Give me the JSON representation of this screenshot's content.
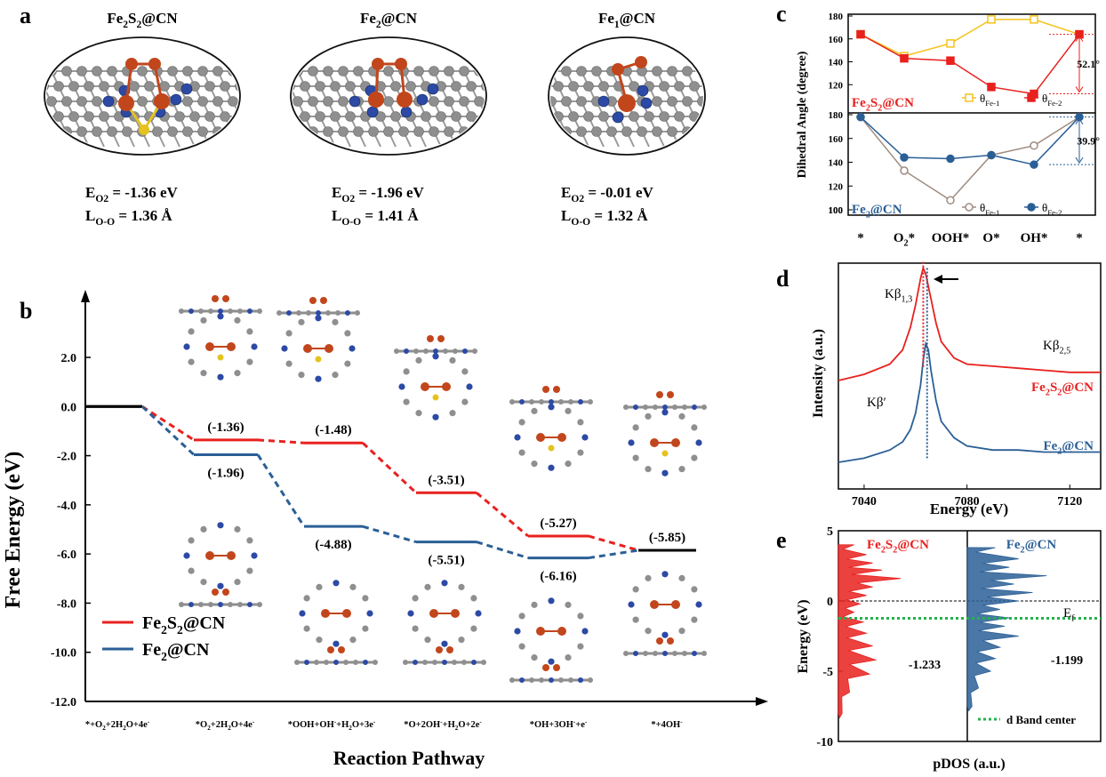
{
  "panels": {
    "a": "a",
    "b": "b",
    "c": "c",
    "d": "d",
    "e": "e"
  },
  "panel_a": {
    "structures": [
      {
        "title": "Fe2S2@CN",
        "e_label": "E",
        "e_sub": "O2",
        "e_value": "= -1.36  eV",
        "l_label": "L",
        "l_sub": "O-O",
        "l_value": "=  1.36 Å"
      },
      {
        "title": "Fe2@CN",
        "e_label": "E",
        "e_sub": "O2",
        "e_value": "= -1.96  eV",
        "l_label": "L",
        "l_sub": "O-O",
        "l_value": "=  1.41 Å"
      },
      {
        "title": "Fe1@CN",
        "e_label": "E",
        "e_sub": "O2",
        "e_value": "= -0.01  eV",
        "l_label": "L",
        "l_sub": "O-O",
        "l_value": "=  1.32 Å"
      }
    ]
  },
  "colors": {
    "red": "#e8211f",
    "blue": "#2a5f96",
    "yellow": "#f5c31c",
    "brown": "#a08c80",
    "green": "#23b24b",
    "fe": "#c2461c",
    "n": "#2c4aa5",
    "c": "#8f8f8f",
    "s": "#e6c21e"
  },
  "chart_data": [
    {
      "panel": "b",
      "type": "line",
      "ylabel": "Free Energy (eV)",
      "xlabel": "Reaction Pathway",
      "ylim": [
        -12.0,
        2.0
      ],
      "yticks": [
        "2.0",
        "0.0",
        "-2.0",
        "-4.0",
        "-6.0",
        "-8.0",
        "-10.0",
        "-12.0"
      ],
      "categories": [
        "*+O2+2H2O+4e-",
        "*O2+2H2O+4e-",
        "*OOH+OH-+H2O+3e-",
        "*O+2OH-+H2O+2e-",
        "*OH+3OH-+e-",
        "*+4OH-"
      ],
      "category_labels": [
        {
          "main": "*+O",
          "sub": "2",
          "rest": "+2H",
          "sub2": "2",
          "rest2": "O+4e",
          "sup": "-"
        },
        {
          "main": "*O",
          "sub": "2",
          "rest": "+2H",
          "sub2": "2",
          "rest2": "O+4e",
          "sup": "-"
        },
        {
          "main": "*OOH+OH",
          "sup1": "-",
          "rest": "+H",
          "sub2": "2",
          "rest2": "O+3e",
          "sup": "-"
        },
        {
          "main": "*O+2OH",
          "sup1": "-",
          "rest": "+H",
          "sub2": "2",
          "rest2": "O+2e",
          "sup": "-"
        },
        {
          "main": "*OH+3OH",
          "sup1": "-",
          "rest": "+e",
          "sup": "-"
        },
        {
          "main": "*+4OH",
          "sup": "-"
        }
      ],
      "series": [
        {
          "name": "Fe2S2@CN",
          "values": [
            0.0,
            -1.36,
            -1.48,
            -3.51,
            -5.27,
            -5.85
          ],
          "labels": [
            "",
            "(-1.36)",
            "(-1.48)",
            "(-3.51)",
            "(-5.27)",
            "(-5.85)"
          ]
        },
        {
          "name": "Fe2@CN",
          "values": [
            0.0,
            -1.96,
            -4.88,
            -5.51,
            -6.16,
            -5.85
          ],
          "labels": [
            "",
            "(-1.96)",
            "(-4.88)",
            "(-5.51)",
            "(-6.16)",
            ""
          ]
        }
      ],
      "legend": [
        {
          "base": "Fe",
          "sub1": "2",
          "mid": "S",
          "sub2": "2",
          "tail": "@CN"
        },
        {
          "base": "Fe",
          "sub1": "2",
          "mid": "",
          "sub2": "",
          "tail": "@CN"
        }
      ],
      "legend_position": "bottom-left"
    },
    {
      "panel": "c",
      "type": "line",
      "ylabel": "Dihedral Angle (degree)",
      "categories": [
        "*",
        "O2*",
        "OOH*",
        "O*",
        "OH*",
        "*"
      ],
      "category_labels": [
        {
          "main": "*"
        },
        {
          "main": "O",
          "sub": "2",
          "rest": "*"
        },
        {
          "main": "OOH*"
        },
        {
          "main": "O*"
        },
        {
          "main": "OH*"
        },
        {
          "main": "*"
        }
      ],
      "subplots": [
        {
          "label": "Fe2S2@CN",
          "ylim": [
            100,
            180
          ],
          "yticks": [
            "100",
            "120",
            "140",
            "160",
            "180"
          ],
          "annotation": "52.1°",
          "series": [
            {
              "name": "θFe-1",
              "symbol": "θ",
              "sub": "Fe-1",
              "marker": "open-square",
              "values": [
                164,
                145,
                156,
                177,
                177,
                164
              ]
            },
            {
              "name": "θFe-2",
              "symbol": "θ",
              "sub": "Fe-2",
              "marker": "filled-square",
              "values": [
                164,
                143,
                141,
                118,
                112,
                164
              ]
            }
          ]
        },
        {
          "label": "Fe2@CN",
          "ylim": [
            100,
            180
          ],
          "yticks": [
            "100",
            "120",
            "140",
            "160",
            "180"
          ],
          "annotation": "39.9°",
          "series": [
            {
              "name": "θFe-1",
              "symbol": "θ",
              "sub": "Fe-1",
              "marker": "open-circle",
              "values": [
                178,
                133,
                108,
                146,
                154,
                178
              ]
            },
            {
              "name": "θFe-2",
              "symbol": "θ",
              "sub": "Fe-2",
              "marker": "filled-circle",
              "values": [
                178,
                144,
                143,
                146,
                138,
                178
              ]
            }
          ]
        }
      ]
    },
    {
      "panel": "d",
      "type": "line",
      "xlabel": "Energy (eV)",
      "ylabel": "Intensity (a.u.)",
      "xlim": [
        7030,
        7132
      ],
      "xticks": [
        "7040",
        "7080",
        "7120"
      ],
      "annotations": [
        {
          "text": "Kβ",
          "sub": "1,3"
        },
        {
          "text": "Kβ",
          "sub": "2,5"
        },
        {
          "text": "Kβ′"
        }
      ],
      "peak_red": 7063,
      "peak_blue": 7064.5,
      "series": [
        {
          "name": "Fe2S2@CN",
          "x": [
            7030,
            7040,
            7050,
            7055,
            7058,
            7060,
            7062,
            7063,
            7064,
            7066,
            7068,
            7070,
            7075,
            7080,
            7090,
            7100,
            7110,
            7120,
            7132
          ],
          "y": [
            0.4,
            0.43,
            0.48,
            0.55,
            0.66,
            0.77,
            0.9,
            0.95,
            0.92,
            0.8,
            0.68,
            0.59,
            0.51,
            0.48,
            0.47,
            0.46,
            0.45,
            0.44,
            0.44
          ]
        },
        {
          "name": "Fe2@CN",
          "x": [
            7030,
            7040,
            7050,
            7055,
            7058,
            7060,
            7062,
            7063,
            7064,
            7065,
            7066,
            7068,
            7070,
            7075,
            7080,
            7090,
            7100,
            7110,
            7120,
            7132
          ],
          "y": [
            0.0,
            0.02,
            0.06,
            0.1,
            0.16,
            0.24,
            0.38,
            0.5,
            0.58,
            0.55,
            0.45,
            0.3,
            0.2,
            0.12,
            0.08,
            0.06,
            0.06,
            0.05,
            0.05,
            0.05
          ]
        }
      ],
      "legend": [
        {
          "base": "Fe",
          "sub1": "2",
          "mid": "S",
          "sub2": "2",
          "tail": "@CN"
        },
        {
          "base": "Fe",
          "sub1": "2",
          "mid": "",
          "sub2": "",
          "tail": "@CN"
        }
      ]
    },
    {
      "panel": "e",
      "type": "area",
      "xlabel": "pDOS (a.u.)",
      "ylabel": "Energy (eV)",
      "ylim": [
        -10,
        5
      ],
      "yticks": [
        "5",
        "0",
        "-5",
        "-10"
      ],
      "fermi_label": "E",
      "fermi_sub": "f",
      "legend_text": "d Band center",
      "series": [
        {
          "name": "Fe2S2@CN",
          "d_band_center": -1.233,
          "center_label": "-1.233",
          "energies": [
            4.0,
            3.3,
            2.7,
            2.2,
            1.6,
            1.0,
            0.4,
            -0.2,
            -0.8,
            -1.5,
            -2.3,
            -3.2,
            -4.2,
            -5.2,
            -6.5,
            -8.0
          ],
          "dos": [
            0.25,
            0.45,
            0.55,
            0.7,
            1.0,
            0.55,
            0.45,
            0.35,
            0.25,
            0.4,
            0.45,
            0.55,
            0.6,
            0.5,
            0.18,
            0.06
          ]
        },
        {
          "name": "Fe2@CN",
          "d_band_center": -1.199,
          "center_label": "-1.199",
          "energies": [
            3.8,
            3.0,
            2.4,
            1.8,
            1.2,
            0.6,
            0.0,
            -0.6,
            -1.2,
            -1.8,
            -2.5,
            -3.3,
            -4.1,
            -5.0,
            -6.2,
            -7.5
          ],
          "dos": [
            0.3,
            0.55,
            0.45,
            0.85,
            0.5,
            0.7,
            0.55,
            0.35,
            0.45,
            0.4,
            0.55,
            0.35,
            0.3,
            0.25,
            0.12,
            0.05
          ]
        }
      ],
      "legend": [
        {
          "base": "Fe",
          "sub1": "2",
          "mid": "S",
          "sub2": "2",
          "tail": "@CN"
        },
        {
          "base": "Fe",
          "sub1": "2",
          "mid": "",
          "sub2": "",
          "tail": "@CN"
        }
      ]
    }
  ]
}
